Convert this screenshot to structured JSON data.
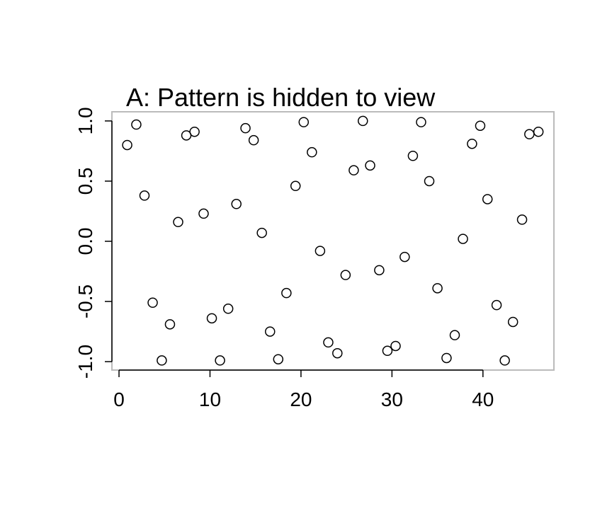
{
  "chart_data": {
    "type": "scatter",
    "title": "A: Pattern is hidden to view",
    "x": [
      0.9,
      1.9,
      2.8,
      3.7,
      4.7,
      5.6,
      6.5,
      7.4,
      8.3,
      9.3,
      10.2,
      11.1,
      12.0,
      12.9,
      13.9,
      14.8,
      15.7,
      16.6,
      17.5,
      18.4,
      19.4,
      20.3,
      21.2,
      22.1,
      23.0,
      24.0,
      24.9,
      25.8,
      26.8,
      27.6,
      28.6,
      29.5,
      30.4,
      31.4,
      32.3,
      33.2,
      34.1,
      35.0,
      36.0,
      36.9,
      37.8,
      38.8,
      39.7,
      40.5,
      41.5,
      42.4,
      43.3,
      44.3,
      45.1,
      46.1
    ],
    "values": [
      0.8,
      0.97,
      0.38,
      -0.51,
      -0.99,
      -0.69,
      0.16,
      0.88,
      0.91,
      0.23,
      -0.64,
      -0.99,
      -0.56,
      0.31,
      0.94,
      0.84,
      0.07,
      -0.75,
      -0.98,
      -0.43,
      0.46,
      0.99,
      0.74,
      -0.08,
      -0.84,
      -0.93,
      -0.28,
      0.59,
      1.0,
      0.63,
      -0.24,
      -0.91,
      -0.87,
      -0.13,
      0.71,
      0.99,
      0.5,
      -0.39,
      -0.97,
      -0.78,
      0.02,
      0.81,
      0.96,
      0.35,
      -0.53,
      -0.99,
      -0.67,
      0.18,
      0.89,
      0.91
    ],
    "color": "#000000",
    "xlim": [
      -0.78,
      47.8
    ],
    "ylim": [
      -1.07,
      1.076
    ],
    "xticks": [
      0,
      10,
      20,
      30,
      40
    ],
    "yticks": [
      {
        "value": -1,
        "label": "-1.0"
      },
      {
        "value": -0.5,
        "label": "-0.5"
      },
      {
        "value": 0,
        "label": "0.0"
      },
      {
        "value": 0.5,
        "label": "0.5"
      },
      {
        "value": 1,
        "label": "1.0"
      }
    ]
  }
}
